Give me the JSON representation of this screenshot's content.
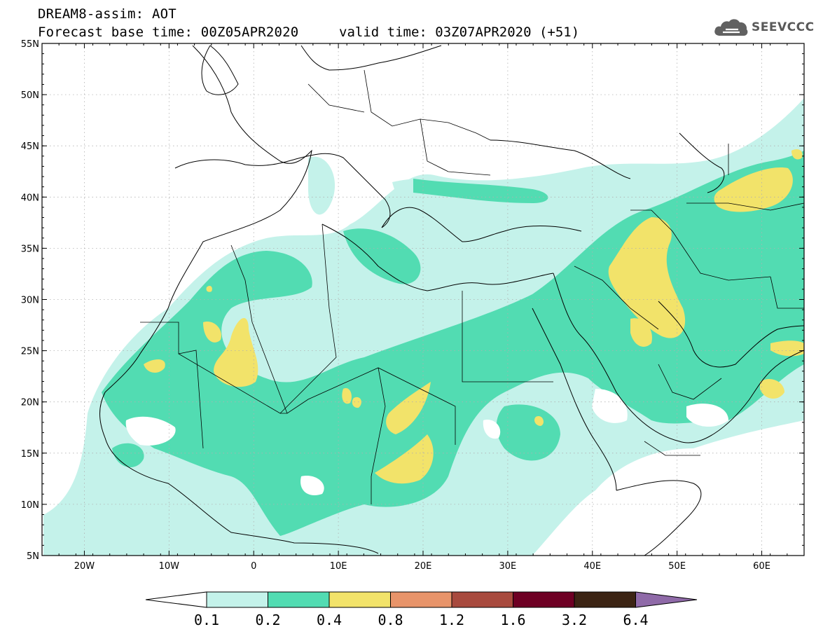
{
  "header": {
    "title_line1": "DREAM8-assim: AOT",
    "title_line2": "Forecast base time: 00Z05APR2020",
    "valid_time": "valid time: 03Z07APR2020 (+51)"
  },
  "logo": {
    "text": "SEEVCCC",
    "icon": "cloud-icon"
  },
  "map": {
    "lat_labels": [
      "55N",
      "50N",
      "45N",
      "40N",
      "35N",
      "30N",
      "25N",
      "20N",
      "15N",
      "10N",
      "5N"
    ],
    "lon_labels": [
      "20W",
      "10W",
      "0",
      "10E",
      "20E",
      "30E",
      "40E",
      "50E",
      "60E"
    ],
    "colors": {
      "frame": "#000000",
      "grid": "#b0b0b0",
      "level_0_1": "#c4f2ea",
      "level_0_2": "#52dcb2",
      "level_0_4": "#f2e36a"
    }
  },
  "legend": {
    "labels": [
      "0.1",
      "0.2",
      "0.4",
      "0.8",
      "1.2",
      "1.6",
      "3.2",
      "6.4"
    ],
    "colors": [
      "#ffffff",
      "#c4f2ea",
      "#52dcb2",
      "#f2e36a",
      "#e8946a",
      "#a84a3e",
      "#6e0024",
      "#3c2414",
      "#8f6aa8"
    ]
  }
}
